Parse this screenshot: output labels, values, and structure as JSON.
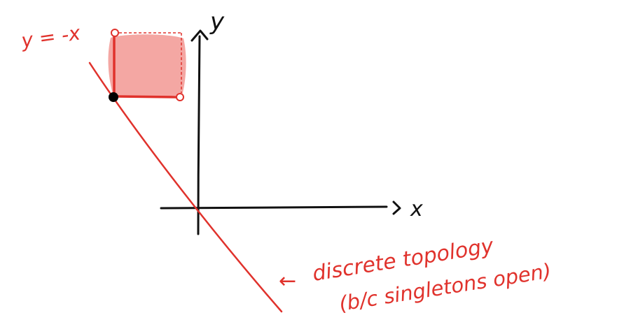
{
  "figure": {
    "axis_labels": {
      "x": "x",
      "y": "y"
    },
    "line_label": "y = -x",
    "annotation": {
      "arrow": "←",
      "line1": "discrete topology",
      "line2": "(b/c singletons open)"
    },
    "colors": {
      "ink": "#111111",
      "accent": "#e0322c",
      "fill": "#f4a7a3",
      "point": "#000000"
    }
  }
}
